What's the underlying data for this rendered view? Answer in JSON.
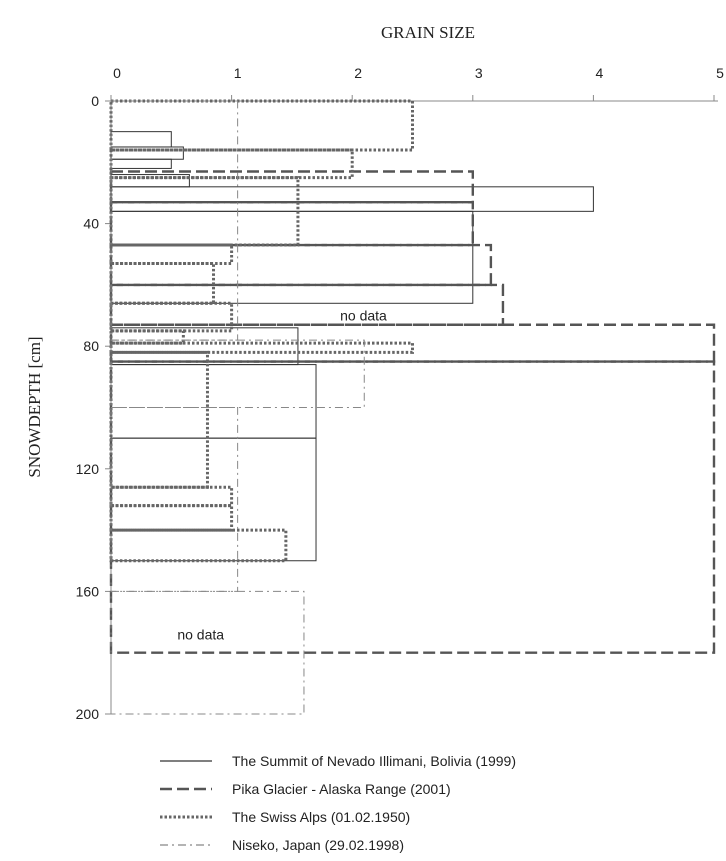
{
  "chart_data": {
    "type": "bar",
    "orientation": "horizontal-step-profile",
    "x_title": "GRAIN SIZE",
    "y_title": "SNOWDEPTH [cm]",
    "xlim": [
      0,
      5
    ],
    "ylim": [
      0,
      200
    ],
    "y_inverted": true,
    "x_ticks": [
      0,
      1,
      2,
      3,
      4,
      5
    ],
    "y_ticks": [
      0,
      40,
      80,
      120,
      160,
      200
    ],
    "x_tick_labels": [
      "0",
      "1",
      "2",
      "3",
      "4",
      "5"
    ],
    "y_tick_labels": [
      "0",
      "40",
      "80",
      "120",
      "160",
      "200"
    ],
    "grid": false,
    "legend_position": "bottom",
    "annotations": [
      {
        "text": "no data",
        "x": 1.9,
        "y": 70
      },
      {
        "text": "no data",
        "x": 0.55,
        "y": 174
      }
    ],
    "series": [
      {
        "name": "The Summit of Nevado Illimani, Bolivia (1999)",
        "style": "solid",
        "color": "#333333",
        "layers": [
          {
            "top": 10,
            "bottom": 15,
            "size": 0.5
          },
          {
            "top": 15,
            "bottom": 19,
            "size": 0.6
          },
          {
            "top": 19,
            "bottom": 22,
            "size": 0.5
          },
          {
            "top": 24,
            "bottom": 28,
            "size": 0.65
          },
          {
            "top": 28,
            "bottom": 36,
            "size": 4.0
          },
          {
            "top": 36,
            "bottom": 66,
            "size": 3.0
          },
          {
            "top": 74,
            "bottom": 86,
            "size": 1.55
          },
          {
            "top": 86,
            "bottom": 110,
            "size": 1.7
          },
          {
            "top": 110,
            "bottom": 150,
            "size": 1.7
          }
        ]
      },
      {
        "name": "Pika Glacier - Alaska Range (2001)",
        "style": "dashed",
        "color": "#555555",
        "layers": [
          {
            "top": 23,
            "bottom": 33,
            "size": 3.0
          },
          {
            "top": 33,
            "bottom": 47,
            "size": 3.0
          },
          {
            "top": 47,
            "bottom": 60,
            "size": 3.15
          },
          {
            "top": 60,
            "bottom": 73,
            "size": 3.25
          },
          {
            "top": 73,
            "bottom": 85,
            "size": 5.0
          },
          {
            "top": 85,
            "bottom": 180,
            "size": 5.0
          }
        ]
      },
      {
        "name": "The Swiss Alps (01.02.1950)",
        "style": "dotted",
        "color": "#666666",
        "layers": [
          {
            "top": 0,
            "bottom": 16,
            "size": 2.5
          },
          {
            "top": 16,
            "bottom": 25,
            "size": 2.0
          },
          {
            "top": 25,
            "bottom": 47,
            "size": 1.55
          },
          {
            "top": 47,
            "bottom": 53,
            "size": 1.0
          },
          {
            "top": 53,
            "bottom": 66,
            "size": 0.85
          },
          {
            "top": 66,
            "bottom": 75,
            "size": 1.0
          },
          {
            "top": 75,
            "bottom": 79,
            "size": 0.6
          },
          {
            "top": 79,
            "bottom": 82,
            "size": 2.5
          },
          {
            "top": 82,
            "bottom": 126,
            "size": 0.8
          },
          {
            "top": 126,
            "bottom": 132,
            "size": 1.0
          },
          {
            "top": 132,
            "bottom": 140,
            "size": 1.0
          },
          {
            "top": 140,
            "bottom": 150,
            "size": 1.45
          }
        ]
      },
      {
        "name": "Niseko, Japan (29.02.1998)",
        "style": "dashdot",
        "color": "#888888",
        "layers": [
          {
            "top": 0,
            "bottom": 78,
            "size": 1.05
          },
          {
            "top": 78,
            "bottom": 100,
            "size": 2.1
          },
          {
            "top": 100,
            "bottom": 160,
            "size": 1.05
          },
          {
            "top": 160,
            "bottom": 200,
            "size": 1.6
          }
        ]
      }
    ]
  }
}
